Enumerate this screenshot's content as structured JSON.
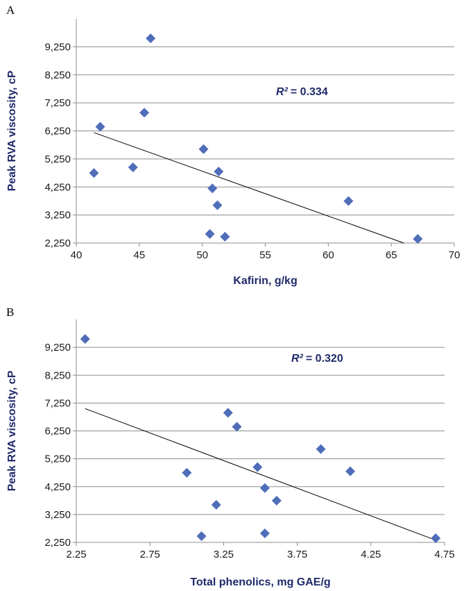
{
  "chart_data": [
    {
      "panel": "A",
      "type": "scatter",
      "xlabel": "Kafirin, g/kg",
      "ylabel": "Peak RVA viscosity, cP",
      "annotation": {
        "label": "R²",
        "value": "= 0.334"
      },
      "xlim": [
        40,
        70
      ],
      "ylim": [
        2250,
        10250
      ],
      "x_ticks": [
        "40",
        "45",
        "50",
        "55",
        "60",
        "65",
        "70"
      ],
      "y_ticks": [
        "2,250",
        "3,250",
        "4,250",
        "5,250",
        "6,250",
        "7,250",
        "8,250",
        "9,250"
      ],
      "grid": "horizontal",
      "points": [
        {
          "x": 41.4,
          "y": 4750
        },
        {
          "x": 41.9,
          "y": 6400
        },
        {
          "x": 44.5,
          "y": 4950
        },
        {
          "x": 45.4,
          "y": 6900
        },
        {
          "x": 45.9,
          "y": 9550
        },
        {
          "x": 50.1,
          "y": 5600
        },
        {
          "x": 50.6,
          "y": 2575
        },
        {
          "x": 50.8,
          "y": 4200
        },
        {
          "x": 51.2,
          "y": 3600
        },
        {
          "x": 51.3,
          "y": 4800
        },
        {
          "x": 51.8,
          "y": 2475
        },
        {
          "x": 61.6,
          "y": 3750
        },
        {
          "x": 67.1,
          "y": 2400
        }
      ],
      "trendline": [
        {
          "x": 41.4,
          "y": 6190
        },
        {
          "x": 66.0,
          "y": 2250
        }
      ]
    },
    {
      "panel": "B",
      "type": "scatter",
      "xlabel": "Total phenolics, mg GAE/g",
      "ylabel": "Peak RVA viscosity, cP",
      "annotation": {
        "label": "R²",
        "value": "= 0.320"
      },
      "xlim": [
        2.25,
        4.75
      ],
      "ylim": [
        2250,
        10250
      ],
      "x_ticks": [
        "2.25",
        "2.75",
        "3.25",
        "3.75",
        "4.25",
        "4.75"
      ],
      "y_ticks": [
        "2,250",
        "3,250",
        "4,250",
        "5,250",
        "6,250",
        "7,250",
        "8,250",
        "9,250"
      ],
      "grid": "horizontal",
      "points": [
        {
          "x": 2.31,
          "y": 9550
        },
        {
          "x": 3.0,
          "y": 4750
        },
        {
          "x": 3.1,
          "y": 2475
        },
        {
          "x": 3.2,
          "y": 3600
        },
        {
          "x": 3.28,
          "y": 6900
        },
        {
          "x": 3.34,
          "y": 6400
        },
        {
          "x": 3.48,
          "y": 4950
        },
        {
          "x": 3.53,
          "y": 4200
        },
        {
          "x": 3.53,
          "y": 2575
        },
        {
          "x": 3.61,
          "y": 3750
        },
        {
          "x": 3.91,
          "y": 5600
        },
        {
          "x": 4.11,
          "y": 4800
        },
        {
          "x": 4.69,
          "y": 2400
        }
      ],
      "trendline": [
        {
          "x": 2.31,
          "y": 7050
        },
        {
          "x": 4.69,
          "y": 2330
        }
      ]
    }
  ]
}
